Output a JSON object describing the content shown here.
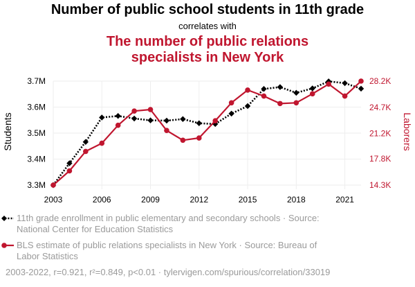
{
  "header": {
    "title": "Number of public school students in 11th grade",
    "subtitle": "correlates with",
    "title2_line1": "The number of public relations",
    "title2_line2": "specialists in New York"
  },
  "legend": {
    "series1_line1": "11th grade enrollment in public elementary and secondary schools · Source:",
    "series1_line2": "National Center for Education Statistics",
    "series2_line1": "BLS estimate of public relations specialists in New York · Source: Bureau of",
    "series2_line2": "Labor Statistics"
  },
  "footer": {
    "stats": "2003-2022, r=0.921, r²=0.849, p<0.01 · tylervigen.com/spurious/correlation/33019"
  },
  "colors": {
    "series1": "#000000",
    "series2": "#c0162f",
    "grid": "#eeeeee"
  },
  "chart_data": {
    "type": "line",
    "title": "Number of public school students in 11th grade",
    "subtitle": "The number of public relations specialists in New York",
    "x": [
      2003,
      2004,
      2005,
      2006,
      2007,
      2008,
      2009,
      2010,
      2011,
      2012,
      2013,
      2014,
      2015,
      2016,
      2017,
      2018,
      2019,
      2020,
      2021,
      2022
    ],
    "x_ticks": [
      2003,
      2006,
      2009,
      2012,
      2015,
      2018,
      2021
    ],
    "left_axis": {
      "label": "Students",
      "ylim": [
        3.3,
        3.7
      ],
      "ticks": [
        3.3,
        3.4,
        3.5,
        3.6,
        3.7
      ],
      "tick_labels": [
        "3.3M",
        "3.4M",
        "3.5M",
        "3.6M",
        "3.7M"
      ]
    },
    "right_axis": {
      "label": "Laborers",
      "ylim": [
        14.3,
        28.2
      ],
      "ticks": [
        14.3,
        17.8,
        21.2,
        24.7,
        28.2
      ],
      "tick_labels": [
        "14.3K",
        "17.8K",
        "21.2K",
        "24.7K",
        "28.2K"
      ]
    },
    "series": [
      {
        "name": "11th grade enrollment in public elementary and secondary schools",
        "axis": "left",
        "style": "dotted",
        "marker": "diamond",
        "values": [
          3.3,
          3.384,
          3.466,
          3.56,
          3.566,
          3.556,
          3.549,
          3.548,
          3.554,
          3.538,
          3.535,
          3.575,
          3.604,
          3.67,
          3.677,
          3.655,
          3.672,
          3.699,
          3.692,
          3.671
        ]
      },
      {
        "name": "BLS estimate of public relations specialists in New York",
        "axis": "right",
        "style": "solid",
        "marker": "circle",
        "values": [
          14.3,
          16.2,
          18.8,
          19.9,
          22.3,
          24.2,
          24.4,
          21.6,
          20.3,
          20.6,
          22.9,
          25.3,
          27.0,
          26.2,
          25.2,
          25.3,
          26.5,
          27.8,
          26.2,
          28.2
        ]
      }
    ],
    "grid": true,
    "legend_position": "bottom"
  }
}
